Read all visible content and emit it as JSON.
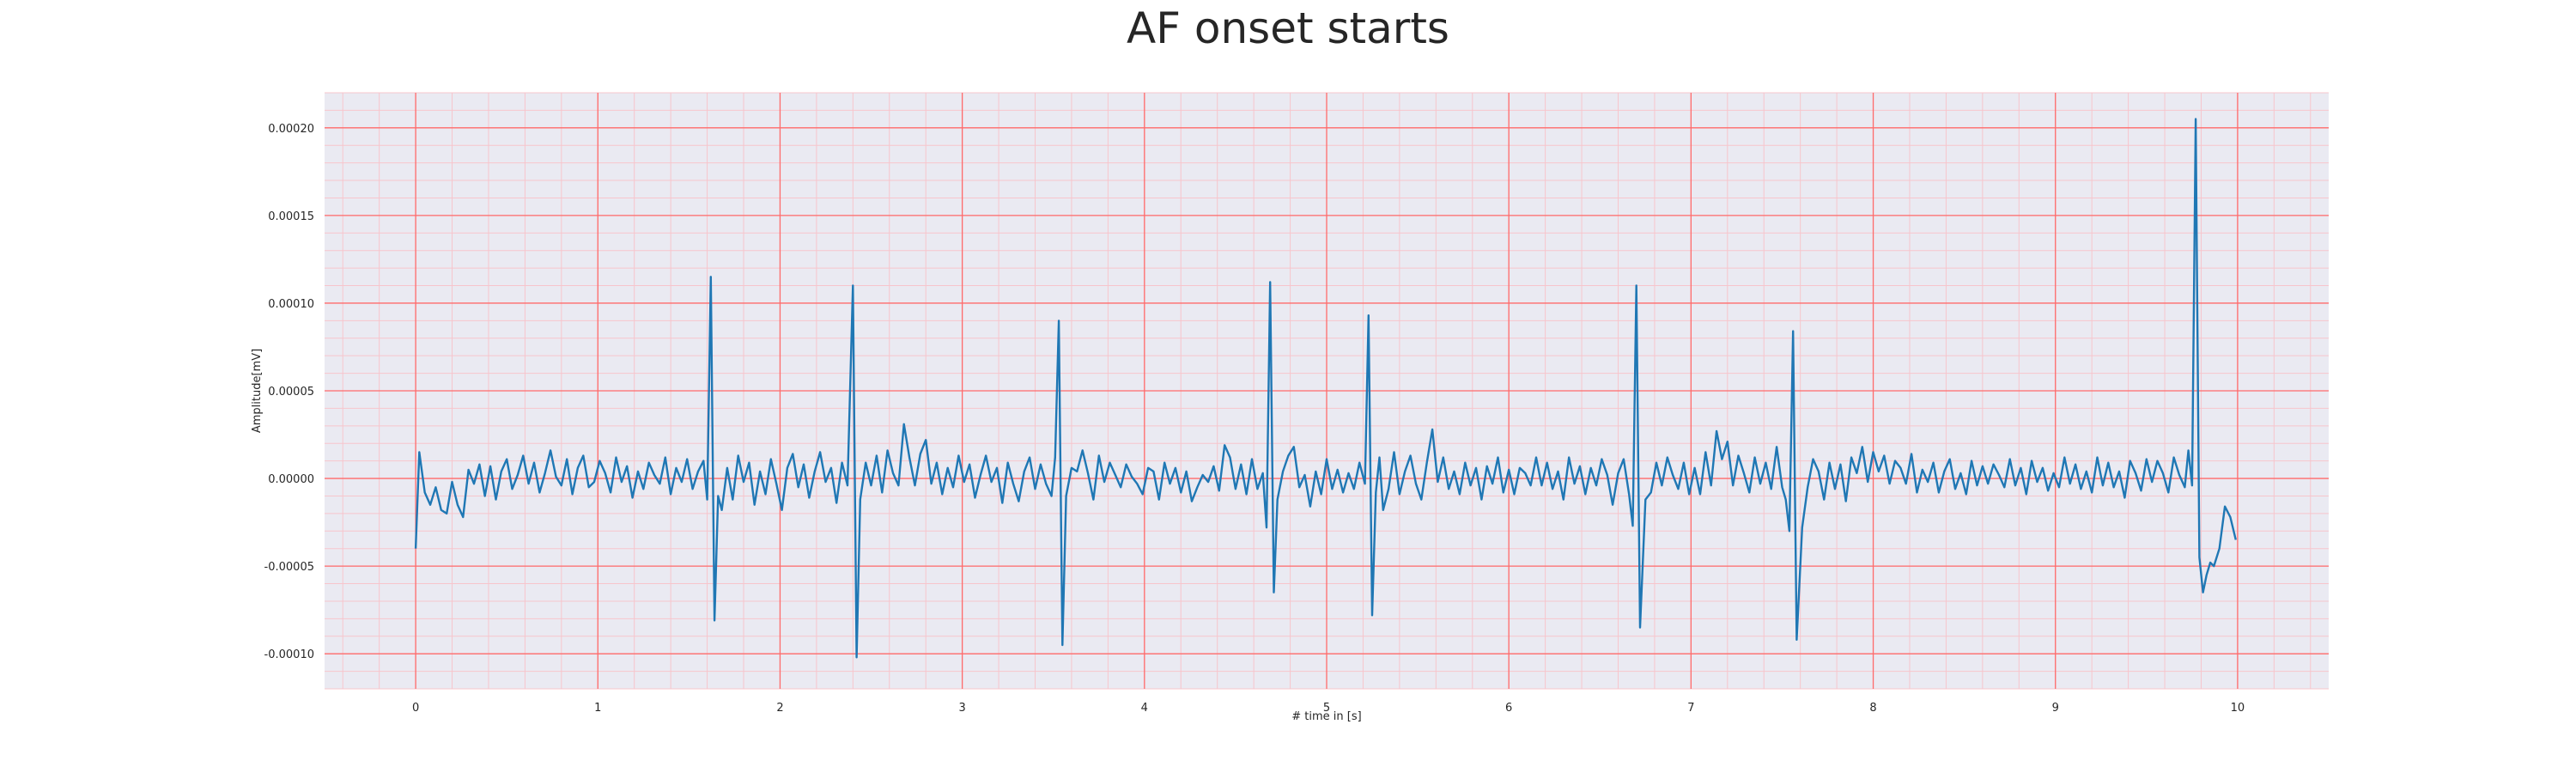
{
  "chart_data": {
    "type": "line",
    "title": "AF onset starts",
    "xlabel": "# time in [s]",
    "ylabel": "Amplitude[mV]",
    "xlim": [
      -0.5,
      10.5
    ],
    "ylim": [
      -0.00012,
      0.00022
    ],
    "x_ticks": [
      "0",
      "1",
      "2",
      "3",
      "4",
      "5",
      "6",
      "7",
      "8",
      "9",
      "10"
    ],
    "y_ticks": [
      "-0.00010",
      "-0.00005",
      "0.00000",
      "0.00005",
      "0.00010",
      "0.00015",
      "0.00020"
    ],
    "grid": true,
    "minor_grid": true,
    "colors": {
      "line": "#1f77b4",
      "plot_background": "#eaeaf2",
      "major_grid": "#ff6b6b",
      "minor_grid": "#f7c5cc"
    },
    "beats": [
      {
        "t": 1.62,
        "peak": 0.000115,
        "trough": -8.1e-05
      },
      {
        "t": 2.4,
        "peak": 0.00011,
        "trough": -0.000102
      },
      {
        "t": 3.53,
        "peak": 9e-05,
        "trough": -9.5e-05
      },
      {
        "t": 4.69,
        "peak": 0.000112,
        "trough": -6.5e-05
      },
      {
        "t": 5.27,
        "peak": 9.3e-05,
        "trough": -7.8e-05
      },
      {
        "t": 6.68,
        "peak": 0.00011,
        "trough": -8.5e-05
      },
      {
        "t": 7.52,
        "peak": 8.4e-05,
        "trough": -9.2e-05
      },
      {
        "t": 9.77,
        "peak": 0.000205,
        "trough": -6.5e-05
      }
    ],
    "series": [
      {
        "x": [
          0.0,
          0.02,
          0.05,
          0.08,
          0.11,
          0.14,
          0.17,
          0.2,
          0.23,
          0.26,
          0.29,
          0.32,
          0.35,
          0.38,
          0.41,
          0.44,
          0.47,
          0.5,
          0.53,
          0.56,
          0.59,
          0.62,
          0.65,
          0.68,
          0.71,
          0.74,
          0.77,
          0.8,
          0.83,
          0.86,
          0.89,
          0.92,
          0.95,
          0.98,
          1.01,
          1.04,
          1.07,
          1.1,
          1.13,
          1.16,
          1.19,
          1.22,
          1.25,
          1.28,
          1.31,
          1.34,
          1.37,
          1.4,
          1.43,
          1.46,
          1.49,
          1.52,
          1.55,
          1.58,
          1.6,
          1.62,
          1.64,
          1.66,
          1.68,
          1.71,
          1.74,
          1.77,
          1.8,
          1.83,
          1.86,
          1.89,
          1.92,
          1.95,
          1.98,
          2.01,
          2.04,
          2.07,
          2.1,
          2.13,
          2.16,
          2.19,
          2.22,
          2.25,
          2.28,
          2.31,
          2.34,
          2.37,
          2.4,
          2.42,
          2.44,
          2.47,
          2.5,
          2.53,
          2.56,
          2.59,
          2.62,
          2.65,
          2.68,
          2.71,
          2.74,
          2.77,
          2.8,
          2.83,
          2.86,
          2.89,
          2.92,
          2.95,
          2.98,
          3.01,
          3.04,
          3.07,
          3.1,
          3.13,
          3.16,
          3.19,
          3.22,
          3.25,
          3.28,
          3.31,
          3.34,
          3.37,
          3.4,
          3.43,
          3.46,
          3.49,
          3.51,
          3.53,
          3.55,
          3.57,
          3.6,
          3.63,
          3.66,
          3.69,
          3.72,
          3.75,
          3.78,
          3.81,
          3.84,
          3.87,
          3.9,
          3.93,
          3.96,
          3.99,
          4.02,
          4.05,
          4.08,
          4.11,
          4.14,
          4.17,
          4.2,
          4.23,
          4.26,
          4.29,
          4.32,
          4.35,
          4.38,
          4.41,
          4.44,
          4.47,
          4.5,
          4.53,
          4.56,
          4.59,
          4.62,
          4.65,
          4.67,
          4.69,
          4.71,
          4.73,
          4.76,
          4.79,
          4.82,
          4.85,
          4.88,
          4.91,
          4.94,
          4.97,
          5.0,
          5.03,
          5.06,
          5.09,
          5.12,
          5.15,
          5.18,
          5.21,
          5.23,
          5.25,
          5.27,
          5.29,
          5.31,
          5.34,
          5.37,
          5.4,
          5.43,
          5.46,
          5.49,
          5.52,
          5.55,
          5.58,
          5.61,
          5.64,
          5.67,
          5.7,
          5.73,
          5.76,
          5.79,
          5.82,
          5.85,
          5.88,
          5.91,
          5.94,
          5.97,
          6.0,
          6.03,
          6.06,
          6.09,
          6.12,
          6.15,
          6.18,
          6.21,
          6.24,
          6.27,
          6.3,
          6.33,
          6.36,
          6.39,
          6.42,
          6.45,
          6.48,
          6.51,
          6.54,
          6.57,
          6.6,
          6.63,
          6.66,
          6.68,
          6.7,
          6.72,
          6.75,
          6.78,
          6.81,
          6.84,
          6.87,
          6.9,
          6.93,
          6.96,
          6.99,
          7.02,
          7.05,
          7.08,
          7.11,
          7.14,
          7.17,
          7.2,
          7.23,
          7.26,
          7.29,
          7.32,
          7.35,
          7.38,
          7.41,
          7.44,
          7.47,
          7.5,
          7.52,
          7.54,
          7.56,
          7.58,
          7.61,
          7.64,
          7.67,
          7.7,
          7.73,
          7.76,
          7.79,
          7.82,
          7.85,
          7.88,
          7.91,
          7.94,
          7.97,
          8.0,
          8.03,
          8.06,
          8.09,
          8.12,
          8.15,
          8.18,
          8.21,
          8.24,
          8.27,
          8.3,
          8.33,
          8.36,
          8.39,
          8.42,
          8.45,
          8.48,
          8.51,
          8.54,
          8.57,
          8.6,
          8.63,
          8.66,
          8.69,
          8.72,
          8.75,
          8.78,
          8.81,
          8.84,
          8.87,
          8.9,
          8.93,
          8.96,
          8.99,
          9.02,
          9.05,
          9.08,
          9.11,
          9.14,
          9.17,
          9.2,
          9.23,
          9.26,
          9.29,
          9.32,
          9.35,
          9.38,
          9.41,
          9.44,
          9.47,
          9.5,
          9.53,
          9.56,
          9.59,
          9.62,
          9.65,
          9.68,
          9.71,
          9.73,
          9.75,
          9.77,
          9.79,
          9.81,
          9.83,
          9.85,
          9.87,
          9.9,
          9.93,
          9.96,
          9.99
        ],
        "y": [
          -4e-05,
          1.5e-05,
          -8e-06,
          -1.5e-05,
          -5e-06,
          -1.8e-05,
          -2e-05,
          -2e-06,
          -1.5e-05,
          -2.2e-05,
          5e-06,
          -3e-06,
          8e-06,
          -1e-05,
          7e-06,
          -1.2e-05,
          4e-06,
          1.1e-05,
          -6e-06,
          2e-06,
          1.3e-05,
          -3e-06,
          9e-06,
          -8e-06,
          3e-06,
          1.6e-05,
          1e-06,
          -4e-06,
          1.1e-05,
          -9e-06,
          6e-06,
          1.3e-05,
          -5e-06,
          -2e-06,
          1e-05,
          3e-06,
          -8e-06,
          1.2e-05,
          -2e-06,
          7e-06,
          -1.1e-05,
          4e-06,
          -6e-06,
          9e-06,
          2e-06,
          -3e-06,
          1.2e-05,
          -9e-06,
          6e-06,
          -2e-06,
          1.1e-05,
          -6e-06,
          4e-06,
          1e-05,
          -1.2e-05,
          0.000115,
          -8.1e-05,
          -1e-05,
          -1.8e-05,
          6e-06,
          -1.2e-05,
          1.3e-05,
          -2e-06,
          9e-06,
          -1.5e-05,
          4e-06,
          -9e-06,
          1.1e-05,
          -3e-06,
          -1.8e-05,
          6e-06,
          1.4e-05,
          -5e-06,
          8e-06,
          -1.1e-05,
          4e-06,
          1.5e-05,
          -2e-06,
          6e-06,
          -1.4e-05,
          9e-06,
          -4e-06,
          0.00011,
          -0.000102,
          -1.2e-05,
          9e-06,
          -4e-06,
          1.3e-05,
          -8e-06,
          1.6e-05,
          3e-06,
          -4e-06,
          3.1e-05,
          1.2e-05,
          -4e-06,
          1.4e-05,
          2.2e-05,
          -3e-06,
          9e-06,
          -9e-06,
          6e-06,
          -5e-06,
          1.3e-05,
          -2e-06,
          8e-06,
          -1.1e-05,
          2e-06,
          1.3e-05,
          -2e-06,
          6e-06,
          -1.4e-05,
          9e-06,
          -3e-06,
          -1.3e-05,
          4e-06,
          1.2e-05,
          -6e-06,
          8e-06,
          -3e-06,
          -1e-05,
          1.2e-05,
          9e-05,
          -9.5e-05,
          -1e-05,
          6e-06,
          4e-06,
          1.6e-05,
          3e-06,
          -1.2e-05,
          1.3e-05,
          -2e-06,
          9e-06,
          2e-06,
          -5e-06,
          8e-06,
          1e-06,
          -3e-06,
          -9e-06,
          6e-06,
          4e-06,
          -1.2e-05,
          9e-06,
          -3e-06,
          6e-06,
          -8e-06,
          4e-06,
          -1.3e-05,
          -5e-06,
          2e-06,
          -2e-06,
          7e-06,
          -7e-06,
          1.9e-05,
          1.2e-05,
          -6e-06,
          8e-06,
          -9e-06,
          1.1e-05,
          -6e-06,
          3e-06,
          -2.8e-05,
          0.000112,
          -6.5e-05,
          -1.2e-05,
          4e-06,
          1.3e-05,
          1.8e-05,
          -5e-06,
          2e-06,
          -1.6e-05,
          4e-06,
          -9e-06,
          1.1e-05,
          -6e-06,
          5e-06,
          -8e-06,
          3e-06,
          -6e-06,
          9e-06,
          -3e-06,
          9.3e-05,
          -7.8e-05,
          -8e-06,
          1.2e-05,
          -1.8e-05,
          -6e-06,
          1.5e-05,
          -9e-06,
          4e-06,
          1.3e-05,
          -3e-06,
          -1.2e-05,
          9e-06,
          2.8e-05,
          -2e-06,
          1.2e-05,
          -6e-06,
          4e-06,
          -9e-06,
          9e-06,
          -4e-06,
          6e-06,
          -1.2e-05,
          7e-06,
          -3e-06,
          1.2e-05,
          -8e-06,
          5e-06,
          -9e-06,
          6e-06,
          3e-06,
          -4e-06,
          1.2e-05,
          -4e-06,
          9e-06,
          -6e-06,
          4e-06,
          -1.2e-05,
          1.2e-05,
          -3e-06,
          7e-06,
          -9e-06,
          6e-06,
          -4e-06,
          1.1e-05,
          2e-06,
          -1.5e-05,
          3e-06,
          1.1e-05,
          -9e-06,
          -2.7e-05,
          0.00011,
          -8.5e-05,
          -1.2e-05,
          -8e-06,
          9e-06,
          -4e-06,
          1.2e-05,
          2e-06,
          -6e-06,
          9e-06,
          -9e-06,
          6e-06,
          -9e-06,
          1.5e-05,
          -4e-06,
          2.7e-05,
          1.1e-05,
          2.1e-05,
          -4e-06,
          1.3e-05,
          3e-06,
          -8e-06,
          1.2e-05,
          -3e-06,
          9e-06,
          -6e-06,
          1.8e-05,
          -5e-06,
          -1.2e-05,
          -3e-05,
          8.4e-05,
          -9.2e-05,
          -2.8e-05,
          -5e-06,
          1.1e-05,
          4e-06,
          -1.2e-05,
          9e-06,
          -6e-06,
          8e-06,
          -1.3e-05,
          1.2e-05,
          3e-06,
          1.8e-05,
          -2e-06,
          1.5e-05,
          4e-06,
          1.3e-05,
          -3e-06,
          1e-05,
          6e-06,
          -3e-06,
          1.4e-05,
          -8e-06,
          5e-06,
          -2e-06,
          9e-06,
          -8e-06,
          4e-06,
          1.1e-05,
          -6e-06,
          3e-06,
          -9e-06,
          1e-05,
          -4e-06,
          7e-06,
          -3e-06,
          8e-06,
          2e-06,
          -5e-06,
          1.1e-05,
          -4e-06,
          6e-06,
          -9e-06,
          1e-05,
          -2e-06,
          6e-06,
          -7e-06,
          3e-06,
          -5e-06,
          1.2e-05,
          -3e-06,
          8e-06,
          -6e-06,
          4e-06,
          -8e-06,
          1.2e-05,
          -4e-06,
          9e-06,
          -5e-06,
          4e-06,
          -1.1e-05,
          1e-05,
          3e-06,
          -7e-06,
          1.1e-05,
          -2e-06,
          1e-05,
          3e-06,
          -8e-06,
          1.2e-05,
          2e-06,
          -5e-06,
          1.6e-05,
          -4e-06,
          0.000205,
          -4.5e-05,
          -6.5e-05,
          -5.5e-05,
          -4.8e-05,
          -5e-05,
          -4e-05,
          -1.6e-05,
          -2.2e-05,
          -3.5e-05
        ]
      }
    ]
  }
}
